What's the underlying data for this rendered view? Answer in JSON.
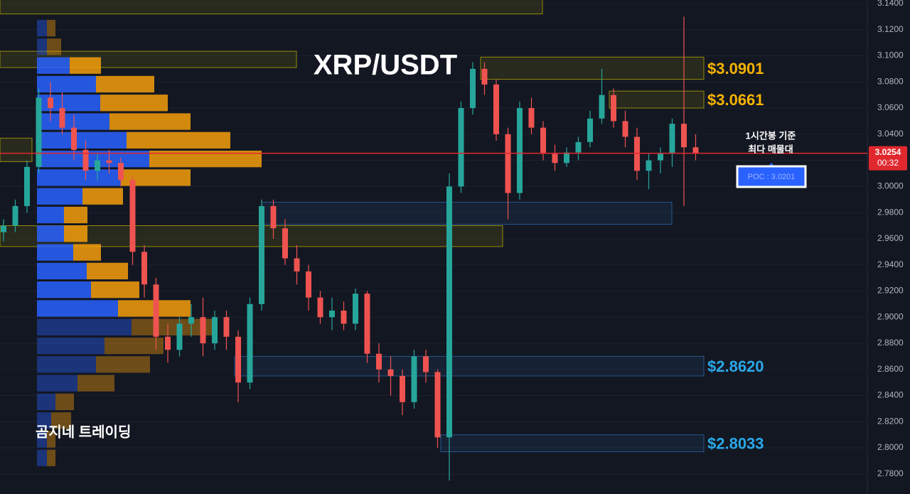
{
  "chart_data": {
    "type": "candlestick",
    "title": "XRP/USDT",
    "watermark": "곰지네 트레이딩",
    "annotation": [
      "1시간봉 기준",
      "최다 매물대"
    ],
    "poc_label": "POC : 3.0201",
    "last_price": 3.0254,
    "countdown": "00:32",
    "up_color": "#26a69a",
    "down_color": "#ef5350",
    "ylim": [
      2.7712,
      3.1427
    ],
    "yticks": [
      {
        "value": 3.14,
        "label": "3.1400"
      },
      {
        "value": 3.12,
        "label": "3.1200"
      },
      {
        "value": 3.1,
        "label": "3.1000"
      },
      {
        "value": 3.08,
        "label": "3.0800"
      },
      {
        "value": 3.06,
        "label": "3.0600"
      },
      {
        "value": 3.04,
        "label": "3.0400"
      },
      {
        "value": 3.02,
        "label": "3.0200"
      },
      {
        "value": 3.0,
        "label": "3.0000"
      },
      {
        "value": 2.98,
        "label": "2.9800"
      },
      {
        "value": 2.96,
        "label": "2.9600"
      },
      {
        "value": 2.94,
        "label": "2.9400"
      },
      {
        "value": 2.92,
        "label": "2.9200"
      },
      {
        "value": 2.9,
        "label": "2.9000"
      },
      {
        "value": 2.88,
        "label": "2.8800"
      },
      {
        "value": 2.86,
        "label": "2.8600"
      },
      {
        "value": 2.84,
        "label": "2.8400"
      },
      {
        "value": 2.82,
        "label": "2.8200"
      },
      {
        "value": 2.8,
        "label": "2.8000"
      },
      {
        "value": 2.78,
        "label": "2.7800"
      }
    ],
    "grid": true,
    "candles": [
      {
        "open": 2.965,
        "high": 2.975,
        "low": 2.958,
        "close": 2.97
      },
      {
        "open": 2.97,
        "high": 2.99,
        "low": 2.965,
        "close": 2.985
      },
      {
        "open": 2.985,
        "high": 3.02,
        "low": 2.98,
        "close": 3.015
      },
      {
        "open": 3.015,
        "high": 3.075,
        "low": 3.01,
        "close": 3.068
      },
      {
        "open": 3.068,
        "high": 3.08,
        "low": 3.05,
        "close": 3.06
      },
      {
        "open": 3.06,
        "high": 3.072,
        "low": 3.04,
        "close": 3.045
      },
      {
        "open": 3.045,
        "high": 3.055,
        "low": 3.02,
        "close": 3.028
      },
      {
        "open": 3.028,
        "high": 3.035,
        "low": 3.005,
        "close": 3.012
      },
      {
        "open": 3.012,
        "high": 3.025,
        "low": 3.005,
        "close": 3.02
      },
      {
        "open": 3.02,
        "high": 3.028,
        "low": 3.01,
        "close": 3.018
      },
      {
        "open": 3.018,
        "high": 3.022,
        "low": 3.0,
        "close": 3.005
      },
      {
        "open": 3.005,
        "high": 3.008,
        "low": 2.94,
        "close": 2.95
      },
      {
        "open": 2.95,
        "high": 2.955,
        "low": 2.915,
        "close": 2.925
      },
      {
        "open": 2.925,
        "high": 2.93,
        "low": 2.875,
        "close": 2.885
      },
      {
        "open": 2.885,
        "high": 2.895,
        "low": 2.865,
        "close": 2.875
      },
      {
        "open": 2.875,
        "high": 2.9,
        "low": 2.87,
        "close": 2.895
      },
      {
        "open": 2.895,
        "high": 2.91,
        "low": 2.885,
        "close": 2.9
      },
      {
        "open": 2.9,
        "high": 2.915,
        "low": 2.87,
        "close": 2.88
      },
      {
        "open": 2.88,
        "high": 2.905,
        "low": 2.875,
        "close": 2.9
      },
      {
        "open": 2.9,
        "high": 2.905,
        "low": 2.875,
        "close": 2.885
      },
      {
        "open": 2.885,
        "high": 2.89,
        "low": 2.835,
        "close": 2.85
      },
      {
        "open": 2.85,
        "high": 2.915,
        "low": 2.845,
        "close": 2.91
      },
      {
        "open": 2.91,
        "high": 2.99,
        "low": 2.905,
        "close": 2.985
      },
      {
        "open": 2.985,
        "high": 2.99,
        "low": 2.96,
        "close": 2.968
      },
      {
        "open": 2.968,
        "high": 2.975,
        "low": 2.94,
        "close": 2.945
      },
      {
        "open": 2.945,
        "high": 2.955,
        "low": 2.925,
        "close": 2.935
      },
      {
        "open": 2.935,
        "high": 2.94,
        "low": 2.905,
        "close": 2.915
      },
      {
        "open": 2.915,
        "high": 2.92,
        "low": 2.895,
        "close": 2.9
      },
      {
        "open": 2.9,
        "high": 2.915,
        "low": 2.89,
        "close": 2.905
      },
      {
        "open": 2.905,
        "high": 2.912,
        "low": 2.89,
        "close": 2.895
      },
      {
        "open": 2.895,
        "high": 2.922,
        "low": 2.89,
        "close": 2.918
      },
      {
        "open": 2.918,
        "high": 2.92,
        "low": 2.865,
        "close": 2.872
      },
      {
        "open": 2.872,
        "high": 2.88,
        "low": 2.85,
        "close": 2.86
      },
      {
        "open": 2.86,
        "high": 2.87,
        "low": 2.84,
        "close": 2.855
      },
      {
        "open": 2.855,
        "high": 2.86,
        "low": 2.825,
        "close": 2.835
      },
      {
        "open": 2.835,
        "high": 2.875,
        "low": 2.83,
        "close": 2.87
      },
      {
        "open": 2.87,
        "high": 2.875,
        "low": 2.85,
        "close": 2.858
      },
      {
        "open": 2.858,
        "high": 2.86,
        "low": 2.8,
        "close": 2.808
      },
      {
        "open": 2.808,
        "high": 3.01,
        "low": 2.775,
        "close": 3.0
      },
      {
        "open": 3.0,
        "high": 3.065,
        "low": 2.995,
        "close": 3.06
      },
      {
        "open": 3.06,
        "high": 3.095,
        "low": 3.055,
        "close": 3.09
      },
      {
        "open": 3.09,
        "high": 3.095,
        "low": 3.07,
        "close": 3.078
      },
      {
        "open": 3.078,
        "high": 3.082,
        "low": 3.035,
        "close": 3.04
      },
      {
        "open": 3.04,
        "high": 3.045,
        "low": 2.975,
        "close": 2.995
      },
      {
        "open": 2.995,
        "high": 3.065,
        "low": 2.99,
        "close": 3.06
      },
      {
        "open": 3.06,
        "high": 3.068,
        "low": 3.04,
        "close": 3.045
      },
      {
        "open": 3.045,
        "high": 3.05,
        "low": 3.02,
        "close": 3.025
      },
      {
        "open": 3.025,
        "high": 3.032,
        "low": 3.012,
        "close": 3.018
      },
      {
        "open": 3.018,
        "high": 3.03,
        "low": 3.015,
        "close": 3.026
      },
      {
        "open": 3.026,
        "high": 3.038,
        "low": 3.02,
        "close": 3.034
      },
      {
        "open": 3.034,
        "high": 3.058,
        "low": 3.03,
        "close": 3.052
      },
      {
        "open": 3.052,
        "high": 3.09,
        "low": 3.048,
        "close": 3.07
      },
      {
        "open": 3.07,
        "high": 3.075,
        "low": 3.045,
        "close": 3.05
      },
      {
        "open": 3.05,
        "high": 3.058,
        "low": 3.03,
        "close": 3.038
      },
      {
        "open": 3.038,
        "high": 3.045,
        "low": 3.005,
        "close": 3.012
      },
      {
        "open": 3.012,
        "high": 3.025,
        "low": 2.998,
        "close": 3.02
      },
      {
        "open": 3.02,
        "high": 3.03,
        "low": 3.01,
        "close": 3.025
      },
      {
        "open": 3.025,
        "high": 3.052,
        "low": 3.015,
        "close": 3.048
      },
      {
        "open": 3.048,
        "high": 3.13,
        "low": 2.985,
        "close": 3.03
      },
      {
        "open": 3.03,
        "high": 3.04,
        "low": 3.02,
        "close": 3.0254
      }
    ],
    "zones": [
      {
        "top": 3.145,
        "bottom": 3.132,
        "color": "#c9b800"
      },
      {
        "top": 3.1035,
        "bottom": 3.091,
        "color": "#c9b800"
      },
      {
        "top": 3.099,
        "bottom": 3.082,
        "color": "#c9b800",
        "label": "$3.0901",
        "label_color": "#f5b300"
      },
      {
        "top": 3.073,
        "bottom": 3.06,
        "color": "#c9b800",
        "label": "$3.0661",
        "label_color": "#f5b300"
      },
      {
        "top": 3.037,
        "bottom": 3.019,
        "color": "#c9b800"
      },
      {
        "top": 2.988,
        "bottom": 2.971,
        "color": "#2f6db5"
      },
      {
        "top": 2.97,
        "bottom": 2.954,
        "color": "#c9b800"
      },
      {
        "top": 2.87,
        "bottom": 2.855,
        "color": "#2f6db5",
        "label": "$2.8620",
        "label_color": "#29a8e8"
      },
      {
        "top": 2.81,
        "bottom": 2.797,
        "color": "#2f6db5",
        "label": "$2.8033",
        "label_color": "#29a8e8"
      }
    ],
    "profile": {
      "top": 3.1275,
      "row_height": 0.0143,
      "buy_color": "#2962ff",
      "sell_color": "#f59d0a",
      "buy": [
        14,
        14,
        46,
        83,
        89,
        102,
        126,
        158,
        118,
        64,
        38,
        38,
        51,
        70,
        76,
        114,
        133,
        95,
        83,
        57,
        26,
        20,
        14,
        14
      ],
      "sell": [
        12,
        20,
        44,
        82,
        95,
        114,
        146,
        158,
        98,
        57,
        33,
        33,
        39,
        58,
        68,
        102,
        118,
        83,
        76,
        52,
        26,
        28,
        12,
        12
      ],
      "in_value_area": [
        false,
        false,
        true,
        true,
        true,
        true,
        true,
        true,
        true,
        true,
        true,
        true,
        true,
        true,
        true,
        true,
        false,
        false,
        false,
        false,
        false,
        false,
        false,
        false
      ]
    }
  }
}
